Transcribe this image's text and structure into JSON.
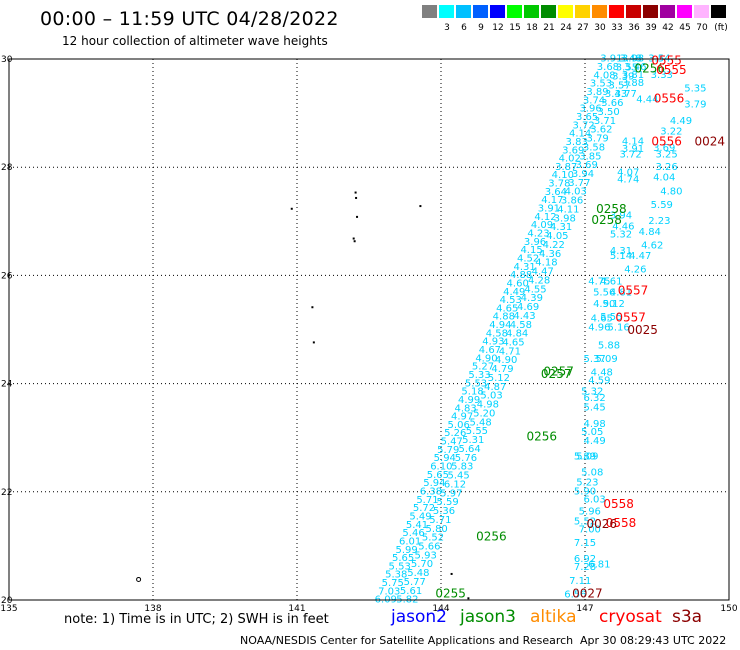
{
  "header": {
    "title": "00:00 – 11:59 UTC 04/28/2022",
    "subtitle": "12 hour collection of altimeter wave heights"
  },
  "legend": {
    "unit": "(ft)",
    "items": [
      {
        "label": "",
        "color": "#808080"
      },
      {
        "label": "3",
        "color": "#00ffff"
      },
      {
        "label": "6",
        "color": "#00c0ff"
      },
      {
        "label": "9",
        "color": "#0060ff"
      },
      {
        "label": "12",
        "color": "#0000ff"
      },
      {
        "label": "15",
        "color": "#00ff00"
      },
      {
        "label": "18",
        "color": "#00c800"
      },
      {
        "label": "21",
        "color": "#008c00"
      },
      {
        "label": "24",
        "color": "#ffff00"
      },
      {
        "label": "27",
        "color": "#ffd200"
      },
      {
        "label": "30",
        "color": "#ff8c00"
      },
      {
        "label": "33",
        "color": "#ff0000"
      },
      {
        "label": "36",
        "color": "#c80000"
      },
      {
        "label": "39",
        "color": "#8c0000"
      },
      {
        "label": "42",
        "color": "#a000a0"
      },
      {
        "label": "45",
        "color": "#ff00ff"
      },
      {
        "label": "70",
        "color": "#ffb4ff"
      },
      {
        "label": "",
        "color": "#000000"
      }
    ]
  },
  "map": {
    "lon_range": [
      135,
      150
    ],
    "lat_range": [
      20,
      30
    ],
    "x_ticks": [
      {
        "value": 135,
        "label": "135"
      },
      {
        "value": 138,
        "label": "138"
      },
      {
        "value": 141,
        "label": "141"
      },
      {
        "value": 144,
        "label": "144"
      },
      {
        "value": 147,
        "label": "147"
      },
      {
        "value": 150,
        "label": "150"
      }
    ],
    "y_ticks": [
      {
        "value": 20,
        "label": "20"
      },
      {
        "value": 22,
        "label": "22"
      },
      {
        "value": 24,
        "label": "24"
      },
      {
        "value": 26,
        "label": "26"
      },
      {
        "value": 28,
        "label": "28"
      },
      {
        "value": 30,
        "label": "30"
      }
    ],
    "colors": {
      "swh": "#00d2ff",
      "jason2": "#0000ff",
      "jason3": "#008c00",
      "altika": "#ff8c00",
      "cryosat": "#ff0000",
      "s3a": "#8c0000"
    },
    "islands": [
      {
        "lon": 143.55,
        "lat": 27.3
      },
      {
        "lon": 142.2,
        "lat": 27.55
      },
      {
        "lon": 142.21,
        "lat": 27.45
      },
      {
        "lon": 142.23,
        "lat": 27.1
      },
      {
        "lon": 142.18,
        "lat": 26.65
      },
      {
        "lon": 142.16,
        "lat": 26.7
      },
      {
        "lon": 140.87,
        "lat": 27.25
      },
      {
        "lon": 141.3,
        "lat": 25.43
      },
      {
        "lon": 141.33,
        "lat": 24.78
      },
      {
        "lon": 144.2,
        "lat": 20.5
      },
      {
        "lon": 144.55,
        "lat": 20.05
      }
    ],
    "track_a": {
      "direction": "ascending",
      "start": [
        142.85,
        19.95
      ],
      "end": [
        147.55,
        29.95
      ],
      "values": [
        "6.09",
        "7.03",
        "5.75",
        "5.38",
        "5.53",
        "5.65",
        "5.99",
        "6.01",
        "5.46",
        "5.41",
        "5.49",
        "5.72",
        "5.71",
        "6.38",
        "5.94",
        "5.65",
        "6.10",
        "5.94",
        "5.79",
        "5.47",
        "5.26",
        "5.06",
        "4.97",
        "4.83",
        "4.99",
        "5.18",
        "5.53",
        "5.33",
        "5.27",
        "4.90",
        "4.67",
        "4.93",
        "4.58",
        "4.94",
        "4.88",
        "4.65",
        "4.53",
        "4.49",
        "4.60",
        "4.88",
        "4.31",
        "4.52",
        "4.15",
        "3.96",
        "4.23",
        "4.09",
        "4.12",
        "3.91",
        "4.17",
        "3.64",
        "3.78",
        "4.10",
        "3.87",
        "4.02",
        "3.69",
        "3.83",
        "4.14",
        "3.72",
        "3.65",
        "3.96",
        "3.74",
        "3.89",
        "3.53",
        "4.08",
        "3.68",
        "3.91"
      ],
      "overlays": [
        {
          "text": "0255",
          "lon": 144.2,
          "lat": 20.05,
          "sat": "jason3"
        },
        {
          "text": "0256",
          "lon": 145.05,
          "lat": 21.1,
          "sat": "jason3"
        },
        {
          "text": "0256",
          "lon": 146.1,
          "lat": 22.95,
          "sat": "jason3"
        },
        {
          "text": "0257",
          "lon": 146.4,
          "lat": 24.1,
          "sat": "jason3"
        },
        {
          "text": "0257",
          "lon": 146.45,
          "lat": 24.15,
          "sat": "jason3"
        },
        {
          "text": "0258",
          "lon": 147.45,
          "lat": 26.95,
          "sat": "jason3"
        },
        {
          "text": "0258",
          "lon": 147.55,
          "lat": 27.15,
          "sat": "jason3"
        },
        {
          "text": "0256",
          "lon": 148.35,
          "lat": 29.75,
          "sat": "jason3"
        }
      ]
    },
    "track_b": {
      "direction": "ascending",
      "start": [
        143.3,
        19.95
      ],
      "end": [
        147.95,
        29.95
      ],
      "values": [
        "5.82",
        "5.61",
        "5.77",
        "5.48",
        "5.70",
        "5.93",
        "5.66",
        "5.52",
        "5.80",
        "5.71",
        "5.36",
        "5.59",
        "5.97",
        "6.12",
        "5.45",
        "5.83",
        "5.76",
        "5.64",
        "5.31",
        "5.55",
        "5.48",
        "5.20",
        "4.98",
        "5.03",
        "4.87",
        "5.12",
        "4.79",
        "4.90",
        "4.71",
        "4.65",
        "4.84",
        "4.58",
        "4.43",
        "4.69",
        "4.39",
        "4.55",
        "4.28",
        "4.47",
        "4.18",
        "4.36",
        "4.22",
        "4.05",
        "4.31",
        "3.98",
        "4.11",
        "3.86",
        "4.03",
        "3.77",
        "3.94",
        "3.69",
        "3.85",
        "3.58",
        "3.79",
        "3.62",
        "3.71",
        "3.50",
        "3.66",
        "3.43",
        "3.57",
        "3.39",
        "3.55",
        "3.48"
      ]
    },
    "track_c_upper": {
      "values": [
        {
          "text": "3.98",
          "lon": 148.0,
          "lat": 29.95
        },
        {
          "text": "3.54",
          "lon": 148.55,
          "lat": 29.95
        },
        {
          "text": "3.46",
          "lon": 148.05,
          "lat": 29.8
        },
        {
          "text": "3.81",
          "lon": 148.0,
          "lat": 29.65
        },
        {
          "text": "3.33",
          "lon": 148.6,
          "lat": 29.65
        },
        {
          "text": "3.88",
          "lon": 148.0,
          "lat": 29.5
        },
        {
          "text": "5.35",
          "lon": 149.3,
          "lat": 29.4
        },
        {
          "text": "3.77",
          "lon": 147.85,
          "lat": 29.3
        },
        {
          "text": "4.44",
          "lon": 148.3,
          "lat": 29.2
        },
        {
          "text": "3.79",
          "lon": 149.3,
          "lat": 29.1
        },
        {
          "text": "4.49",
          "lon": 149.0,
          "lat": 28.8
        },
        {
          "text": "3.22",
          "lon": 148.8,
          "lat": 28.6
        },
        {
          "text": "4.14",
          "lon": 148.0,
          "lat": 28.42
        },
        {
          "text": "3.91",
          "lon": 148.0,
          "lat": 28.28
        },
        {
          "text": "3.69",
          "lon": 148.65,
          "lat": 28.3
        },
        {
          "text": "3.72",
          "lon": 147.95,
          "lat": 28.18
        },
        {
          "text": "3.25",
          "lon": 148.7,
          "lat": 28.18
        },
        {
          "text": "3.26",
          "lon": 148.7,
          "lat": 27.95
        },
        {
          "text": "4.07",
          "lon": 147.9,
          "lat": 27.85
        },
        {
          "text": "4.04",
          "lon": 148.65,
          "lat": 27.75
        },
        {
          "text": "4.74",
          "lon": 147.9,
          "lat": 27.72
        },
        {
          "text": "4.80",
          "lon": 148.8,
          "lat": 27.5
        },
        {
          "text": "5.59",
          "lon": 148.6,
          "lat": 27.25
        },
        {
          "text": "3.94",
          "lon": 147.75,
          "lat": 27.05
        },
        {
          "text": "2.23",
          "lon": 148.55,
          "lat": 26.95
        },
        {
          "text": "4.46",
          "lon": 147.8,
          "lat": 26.85
        },
        {
          "text": "4.84",
          "lon": 148.35,
          "lat": 26.75
        },
        {
          "text": "5.32",
          "lon": 147.75,
          "lat": 26.7
        },
        {
          "text": "4.62",
          "lon": 148.4,
          "lat": 26.5
        },
        {
          "text": "4.31",
          "lon": 147.75,
          "lat": 26.4
        },
        {
          "text": "5.14",
          "lon": 147.75,
          "lat": 26.3
        },
        {
          "text": "4.47",
          "lon": 148.15,
          "lat": 26.3
        },
        {
          "text": "4.26",
          "lon": 148.05,
          "lat": 26.05
        }
      ],
      "overlays": [
        {
          "text": "0555",
          "lon": 148.7,
          "lat": 29.9,
          "sat": "cryosat"
        },
        {
          "text": "0555",
          "lon": 148.8,
          "lat": 29.72,
          "sat": "cryosat"
        },
        {
          "text": "0556",
          "lon": 148.75,
          "lat": 29.2,
          "sat": "cryosat"
        },
        {
          "text": "0556",
          "lon": 148.7,
          "lat": 28.4,
          "sat": "cryosat"
        },
        {
          "text": "0024",
          "lon": 149.6,
          "lat": 28.4,
          "sat": "s3a"
        }
      ]
    },
    "track_c_lower": {
      "values": [
        {
          "text": "4.61",
          "lon": 147.55,
          "lat": 25.83
        },
        {
          "text": "4.75",
          "lon": 147.3,
          "lat": 25.83
        },
        {
          "text": "5.56",
          "lon": 147.4,
          "lat": 25.63
        },
        {
          "text": "4.81",
          "lon": 147.75,
          "lat": 25.63
        },
        {
          "text": "5.12",
          "lon": 147.6,
          "lat": 25.42
        },
        {
          "text": "4.90",
          "lon": 147.4,
          "lat": 25.42
        },
        {
          "text": "5.55",
          "lon": 147.55,
          "lat": 25.18
        },
        {
          "text": "4.65",
          "lon": 147.35,
          "lat": 25.15
        },
        {
          "text": "5.16",
          "lon": 147.7,
          "lat": 24.98
        },
        {
          "text": "4.96",
          "lon": 147.3,
          "lat": 24.98
        },
        {
          "text": "5.88",
          "lon": 147.5,
          "lat": 24.65
        },
        {
          "text": "5.37",
          "lon": 147.2,
          "lat": 24.4
        },
        {
          "text": "5.09",
          "lon": 147.45,
          "lat": 24.4
        },
        {
          "text": "4.48",
          "lon": 147.35,
          "lat": 24.15
        },
        {
          "text": "4.59",
          "lon": 147.3,
          "lat": 24.0
        },
        {
          "text": "5.32",
          "lon": 147.15,
          "lat": 23.8
        },
        {
          "text": "6.32",
          "lon": 147.2,
          "lat": 23.68
        },
        {
          "text": "5.45",
          "lon": 147.2,
          "lat": 23.5
        },
        {
          "text": "4.98",
          "lon": 147.2,
          "lat": 23.2
        },
        {
          "text": "5.05",
          "lon": 147.15,
          "lat": 23.05
        },
        {
          "text": "4.49",
          "lon": 147.2,
          "lat": 22.88
        },
        {
          "text": "5.09",
          "lon": 147.05,
          "lat": 22.6
        },
        {
          "text": "5.89",
          "lon": 147.0,
          "lat": 22.6
        },
        {
          "text": "5.08",
          "lon": 147.15,
          "lat": 22.3
        },
        {
          "text": "5.23",
          "lon": 147.05,
          "lat": 22.12
        },
        {
          "text": "5.90",
          "lon": 147.0,
          "lat": 21.95
        },
        {
          "text": "6.03",
          "lon": 147.2,
          "lat": 21.8
        },
        {
          "text": "5.96",
          "lon": 147.1,
          "lat": 21.58
        },
        {
          "text": "5.52",
          "lon": 147.0,
          "lat": 21.4
        },
        {
          "text": "7.00",
          "lon": 147.1,
          "lat": 21.25
        },
        {
          "text": "7.15",
          "lon": 147.0,
          "lat": 21.0
        },
        {
          "text": "6.92",
          "lon": 147.0,
          "lat": 20.7
        },
        {
          "text": "6.81",
          "lon": 147.3,
          "lat": 20.6
        },
        {
          "text": "7.28",
          "lon": 147.0,
          "lat": 20.55
        },
        {
          "text": "7.11",
          "lon": 146.9,
          "lat": 20.3
        },
        {
          "text": "6.56",
          "lon": 146.8,
          "lat": 20.05
        }
      ],
      "overlays": [
        {
          "text": "0557",
          "lon": 148.0,
          "lat": 25.65,
          "sat": "cryosat"
        },
        {
          "text": "0557",
          "lon": 147.95,
          "lat": 25.15,
          "sat": "cryosat"
        },
        {
          "text": "0025",
          "lon": 148.2,
          "lat": 24.92,
          "sat": "s3a"
        },
        {
          "text": "0558",
          "lon": 147.7,
          "lat": 21.7,
          "sat": "cryosat"
        },
        {
          "text": "0558",
          "lon": 147.75,
          "lat": 21.35,
          "sat": "cryosat"
        },
        {
          "text": "0026",
          "lon": 147.35,
          "lat": 21.33,
          "sat": "s3a"
        },
        {
          "text": "0027",
          "lon": 147.05,
          "lat": 20.05,
          "sat": "s3a"
        }
      ]
    }
  },
  "footer": {
    "note": "note: 1) Time is in UTC; 2) SWH is in feet",
    "sat_jason2": "jason2",
    "sat_jason3": "jason3",
    "sat_altika": "altika",
    "sat_cryosat": "cryosat",
    "sat_s3a": "s3a",
    "credit": "NOAA/NESDIS Center for Satellite Applications and Research",
    "timestamp": "Apr 30 08:29:43 UTC 2022"
  }
}
